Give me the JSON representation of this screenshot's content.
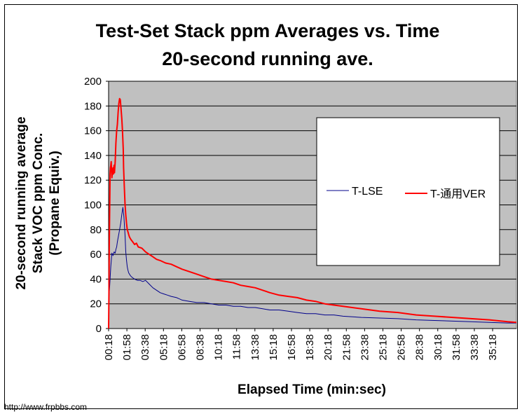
{
  "chart_data": {
    "type": "line",
    "title": [
      "Test-Set Stack ppm Averages vs. Time",
      "20-second running ave."
    ],
    "xlabel": "Elapsed Time (min:sec)",
    "ylabel": [
      "20-second running average",
      "Stack VOC ppm Conc.",
      "(Propane Equiv.)"
    ],
    "ylim": [
      0,
      200
    ],
    "yticks": [
      0,
      20,
      40,
      60,
      80,
      100,
      120,
      140,
      160,
      180,
      200
    ],
    "xlim_seconds": [
      18,
      2248
    ],
    "x_tick_labels": [
      "00:18",
      "01:58",
      "03:38",
      "05:18",
      "06:58",
      "08:38",
      "10:18",
      "11:58",
      "13:38",
      "15:18",
      "16:58",
      "18:38",
      "20:18",
      "21:58",
      "23:38",
      "25:18",
      "26:58",
      "28:38",
      "30:18",
      "31:58",
      "33:38",
      "35:18"
    ],
    "grid": true,
    "background_color": "#c0c0c0",
    "legend_position": "right",
    "series": [
      {
        "name": "T-LSE",
        "color": "#00008b",
        "x_seconds": [
          18,
          24,
          30,
          36,
          42,
          48,
          54,
          58,
          62,
          66,
          72,
          78,
          84,
          90,
          96,
          102,
          108,
          112,
          116,
          120,
          124,
          128,
          132,
          136,
          142,
          150,
          160,
          175,
          190,
          205,
          220,
          240,
          260,
          280,
          300,
          320,
          340,
          360,
          390,
          420,
          460,
          500,
          540,
          580,
          620,
          660,
          700,
          740,
          780,
          820,
          860,
          900,
          950,
          1000,
          1050,
          1100,
          1150,
          1200,
          1250,
          1300,
          1400,
          1500,
          1600,
          1700,
          1800,
          1900,
          2000,
          2100,
          2200,
          2248
        ],
        "values": [
          22,
          35,
          50,
          61,
          59,
          62,
          61,
          64,
          66,
          70,
          75,
          80,
          85,
          92,
          98,
          90,
          75,
          62,
          55,
          50,
          47,
          45,
          44,
          43,
          42,
          41,
          40,
          39,
          39,
          38,
          39,
          36,
          33,
          31,
          29,
          28,
          27,
          26,
          25,
          23,
          22,
          21,
          21,
          20,
          19,
          19,
          18,
          18,
          17,
          17,
          16,
          15,
          15,
          14,
          13,
          12,
          12,
          11,
          11,
          10,
          9,
          8.5,
          8,
          7,
          6.5,
          6,
          5.5,
          5,
          4.5,
          4.5
        ]
      },
      {
        "name": "T-通用VER",
        "color": "#ff0000",
        "x_seconds": [
          18,
          20,
          22,
          24,
          26,
          28,
          30,
          32,
          34,
          36,
          38,
          40,
          42,
          44,
          46,
          48,
          50,
          54,
          58,
          62,
          66,
          70,
          74,
          78,
          82,
          86,
          90,
          94,
          98,
          100,
          104,
          108,
          112,
          116,
          120,
          124,
          128,
          132,
          140,
          150,
          160,
          170,
          180,
          200,
          220,
          240,
          260,
          280,
          300,
          330,
          360,
          390,
          420,
          460,
          500,
          540,
          580,
          620,
          660,
          700,
          740,
          780,
          820,
          860,
          900,
          950,
          1000,
          1050,
          1100,
          1150,
          1200,
          1250,
          1300,
          1400,
          1500,
          1600,
          1700,
          1800,
          1900,
          2000,
          2100,
          2200,
          2248
        ],
        "values": [
          0,
          30,
          70,
          100,
          125,
          130,
          132,
          135,
          128,
          122,
          125,
          128,
          130,
          125,
          128,
          132,
          126,
          135,
          150,
          160,
          165,
          175,
          182,
          186,
          185,
          178,
          170,
          160,
          145,
          130,
          115,
          100,
          92,
          85,
          80,
          78,
          76,
          74,
          72,
          70,
          68,
          69,
          66,
          65,
          62,
          60,
          58,
          56,
          55,
          53,
          52,
          50,
          48,
          46,
          44,
          42,
          40,
          39,
          38,
          37,
          35,
          34,
          33,
          31,
          29,
          27,
          26,
          25,
          23,
          22,
          20,
          19,
          18,
          16,
          14,
          13,
          11,
          10,
          9,
          8,
          7,
          5.5,
          5
        ]
      }
    ]
  },
  "watermark": "http://www.frpbbs.com"
}
